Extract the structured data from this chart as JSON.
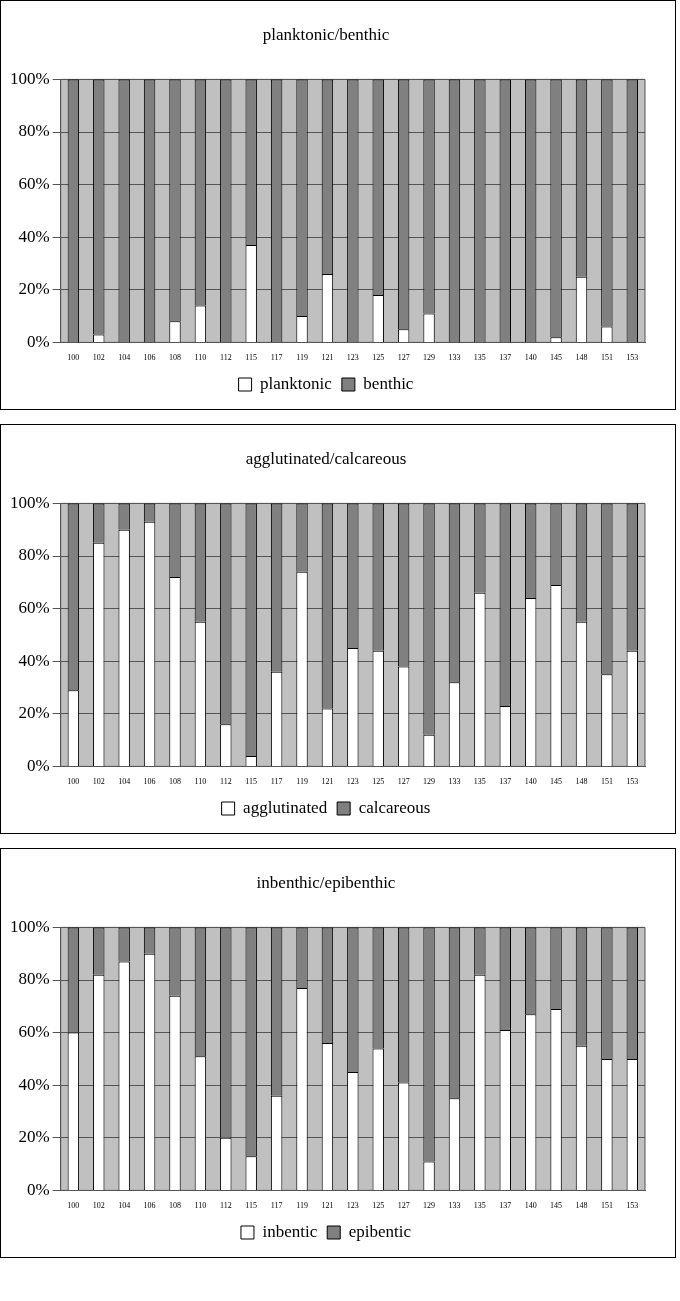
{
  "chart_data": [
    {
      "type": "bar",
      "title": "planktonic/benthic",
      "categories": [
        "100",
        "102",
        "104",
        "106",
        "108",
        "110",
        "112",
        "115",
        "117",
        "119",
        "121",
        "123",
        "125",
        "127",
        "129",
        "133",
        "135",
        "137",
        "140",
        "145",
        "148",
        "151",
        "153"
      ],
      "stacked": true,
      "ylim": [
        0,
        100
      ],
      "yticks": [
        {
          "value": 0,
          "label": "0%"
        },
        {
          "value": 20,
          "label": "20%"
        },
        {
          "value": 40,
          "label": "40%"
        },
        {
          "value": 60,
          "label": "60%"
        },
        {
          "value": 80,
          "label": "80%"
        },
        {
          "value": 100,
          "label": "100%"
        }
      ],
      "grid": "y",
      "legend": "bottom",
      "series": [
        {
          "name": "planktonic",
          "color": "#ffffff",
          "values": [
            0,
            3,
            0,
            0,
            8,
            14,
            0,
            37,
            0,
            10,
            26,
            0,
            18,
            5,
            11,
            0,
            0,
            0,
            0,
            2,
            25,
            6,
            0
          ]
        },
        {
          "name": "benthic",
          "color": "#808080",
          "values": [
            100,
            97,
            100,
            100,
            92,
            86,
            100,
            63,
            100,
            90,
            74,
            100,
            82,
            95,
            89,
            100,
            100,
            100,
            100,
            98,
            75,
            94,
            100
          ]
        }
      ]
    },
    {
      "type": "bar",
      "title": "agglutinated/calcareous",
      "categories": [
        "100",
        "102",
        "104",
        "106",
        "108",
        "110",
        "112",
        "115",
        "117",
        "119",
        "121",
        "123",
        "125",
        "127",
        "129",
        "133",
        "135",
        "137",
        "140",
        "145",
        "148",
        "151",
        "153"
      ],
      "stacked": true,
      "ylim": [
        0,
        100
      ],
      "yticks": [
        {
          "value": 0,
          "label": "0%"
        },
        {
          "value": 20,
          "label": "20%"
        },
        {
          "value": 40,
          "label": "40%"
        },
        {
          "value": 60,
          "label": "60%"
        },
        {
          "value": 80,
          "label": "80%"
        },
        {
          "value": 100,
          "label": "100%"
        }
      ],
      "grid": "y",
      "legend": "bottom",
      "series": [
        {
          "name": "agglutinated",
          "color": "#ffffff",
          "values": [
            29,
            85,
            90,
            93,
            72,
            55,
            16,
            4,
            36,
            74,
            22,
            45,
            44,
            38,
            12,
            32,
            66,
            23,
            64,
            69,
            55,
            35,
            44
          ]
        },
        {
          "name": "calcareous",
          "color": "#808080",
          "values": [
            71,
            15,
            10,
            7,
            28,
            45,
            84,
            96,
            64,
            26,
            78,
            55,
            56,
            62,
            88,
            68,
            34,
            77,
            36,
            31,
            45,
            65,
            56
          ]
        }
      ]
    },
    {
      "type": "bar",
      "title": "inbenthic/epibenthic",
      "categories": [
        "100",
        "102",
        "104",
        "106",
        "108",
        "110",
        "112",
        "115",
        "117",
        "119",
        "121",
        "123",
        "125",
        "127",
        "129",
        "133",
        "135",
        "137",
        "140",
        "145",
        "148",
        "151",
        "153"
      ],
      "stacked": true,
      "ylim": [
        0,
        100
      ],
      "yticks": [
        {
          "value": 0,
          "label": "0%"
        },
        {
          "value": 20,
          "label": "20%"
        },
        {
          "value": 40,
          "label": "40%"
        },
        {
          "value": 60,
          "label": "60%"
        },
        {
          "value": 80,
          "label": "80%"
        },
        {
          "value": 100,
          "label": "100%"
        }
      ],
      "grid": "y",
      "legend": "bottom",
      "series": [
        {
          "name": "inbentic",
          "color": "#ffffff",
          "values": [
            60,
            82,
            87,
            90,
            74,
            51,
            20,
            13,
            36,
            77,
            56,
            45,
            54,
            41,
            11,
            35,
            82,
            61,
            67,
            69,
            55,
            50,
            50
          ]
        },
        {
          "name": "epibentic",
          "color": "#808080",
          "values": [
            40,
            18,
            13,
            10,
            26,
            49,
            80,
            87,
            64,
            23,
            44,
            55,
            46,
            59,
            89,
            65,
            18,
            39,
            33,
            31,
            45,
            50,
            50
          ]
        }
      ]
    }
  ]
}
